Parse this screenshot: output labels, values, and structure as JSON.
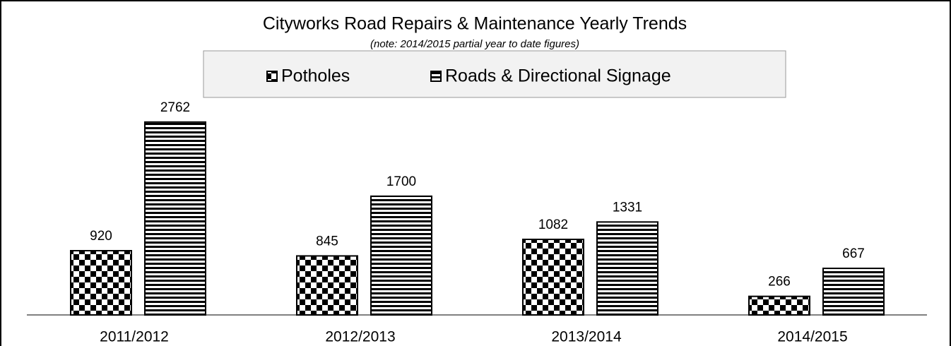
{
  "chart_data": {
    "type": "bar",
    "title": "Cityworks Road Repairs & Maintenance Yearly Trends",
    "subtitle": "(note: 2014/2015 partial year to date figures)",
    "categories": [
      "2011/2012",
      "2012/2013",
      "2013/2014",
      "2014/2015"
    ],
    "series": [
      {
        "name": "Potholes",
        "color": "#000000",
        "values": [
          920,
          845,
          1082,
          266
        ]
      },
      {
        "name": "Roads & Directional Signage",
        "color": "#000000",
        "values": [
          2762,
          1700,
          1331,
          667
        ]
      }
    ],
    "legend": "top"
  }
}
